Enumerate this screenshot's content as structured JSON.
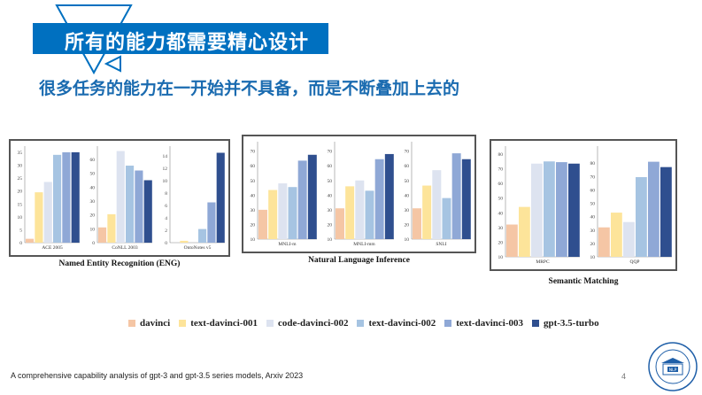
{
  "header": {
    "title": "所有的能力都需要精心设计",
    "subtitle": "很多任务的能力在一开始并不具备，而是不断叠加上去的",
    "accent_color": "#0070c0"
  },
  "legend": [
    {
      "label": "davinci",
      "color": "#f5c6a5"
    },
    {
      "label": "text-davinci-001",
      "color": "#fde49a"
    },
    {
      "label": "code-davinci-002",
      "color": "#dde3f0"
    },
    {
      "label": "text-davinci-002",
      "color": "#a6c4e2"
    },
    {
      "label": "text-davinci-003",
      "color": "#8fa8d6"
    },
    {
      "label": "gpt-3.5-turbo",
      "color": "#2f4f8f"
    }
  ],
  "chart_data": [
    {
      "type": "bar",
      "title": "Named Entity Recognition (ENG)",
      "series_names": [
        "davinci",
        "text-davinci-001",
        "code-davinci-002",
        "text-davinci-002",
        "text-davinci-003",
        "gpt-3.5-turbo"
      ],
      "subplots": [
        {
          "xlabel": "ACE 2005",
          "values": [
            1.5,
            19.5,
            23.5,
            34,
            35,
            35
          ],
          "ylim": [
            0,
            36
          ],
          "yticks": [
            "0",
            "5",
            "10",
            "15",
            "20",
            "25",
            "30",
            "35"
          ]
        },
        {
          "xlabel": "CoNLL 2003",
          "values": [
            11,
            20.5,
            66,
            55.5,
            52,
            45
          ],
          "ylim": [
            0,
            67
          ],
          "yticks": [
            "0",
            "10",
            "20",
            "30",
            "40",
            "50",
            "60"
          ]
        },
        {
          "xlabel": "OntoNotes v5",
          "values": [
            0,
            0.3,
            0,
            2.2,
            6.5,
            14.5
          ],
          "ylim": [
            0,
            15
          ],
          "yticks": [
            "0",
            "2",
            "4",
            "6",
            "8",
            "10",
            "12",
            "14"
          ]
        }
      ]
    },
    {
      "type": "bar",
      "title": "Natural Language Inference",
      "series_names": [
        "davinci",
        "text-davinci-001",
        "code-davinci-002",
        "text-davinci-002",
        "text-davinci-003",
        "gpt-3.5-turbo"
      ],
      "subplots": [
        {
          "xlabel": "MNLI-m",
          "values": [
            30,
            43.5,
            48,
            45.5,
            63.5,
            67.5
          ],
          "ylim": [
            10,
            74
          ],
          "yticks": [
            "10",
            "20",
            "30",
            "40",
            "50",
            "60",
            "70"
          ]
        },
        {
          "xlabel": "MNLI-mm",
          "values": [
            31,
            46,
            50,
            43,
            64.5,
            68
          ],
          "ylim": [
            10,
            74
          ],
          "yticks": [
            "10",
            "20",
            "30",
            "40",
            "50",
            "60",
            "70"
          ]
        },
        {
          "xlabel": "SNLI",
          "values": [
            31,
            46.5,
            57,
            38,
            68.5,
            64.5
          ],
          "ylim": [
            10,
            74
          ],
          "yticks": [
            "10",
            "20",
            "30",
            "40",
            "50",
            "60",
            "70"
          ]
        }
      ]
    },
    {
      "type": "bar",
      "title": "Semantic Matching",
      "series_names": [
        "davinci",
        "text-davinci-001",
        "code-davinci-002",
        "text-davinci-002",
        "text-davinci-003",
        "gpt-3.5-turbo"
      ],
      "subplots": [
        {
          "xlabel": "MRPC",
          "values": [
            32,
            44,
            73.5,
            75,
            74.5,
            73.5
          ],
          "ylim": [
            10,
            83
          ],
          "yticks": [
            "10",
            "20",
            "30",
            "40",
            "50",
            "60",
            "70",
            "80"
          ]
        },
        {
          "xlabel": "QQP",
          "values": [
            32,
            43,
            36,
            69.5,
            81,
            77
          ],
          "ylim": [
            10,
            90
          ],
          "yticks": [
            "10",
            "20",
            "30",
            "40",
            "50",
            "60",
            "70",
            "80"
          ]
        }
      ]
    }
  ],
  "footer": {
    "citation": "A comprehensive capability analysis of gpt-3 and gpt-3.5 series models, Arxiv 2023",
    "page_number": "4"
  },
  "logo": {
    "text": "FUDAN UNIVERSITY NATURAL LANGUAGE PROCESSING",
    "badge": "NLP"
  }
}
